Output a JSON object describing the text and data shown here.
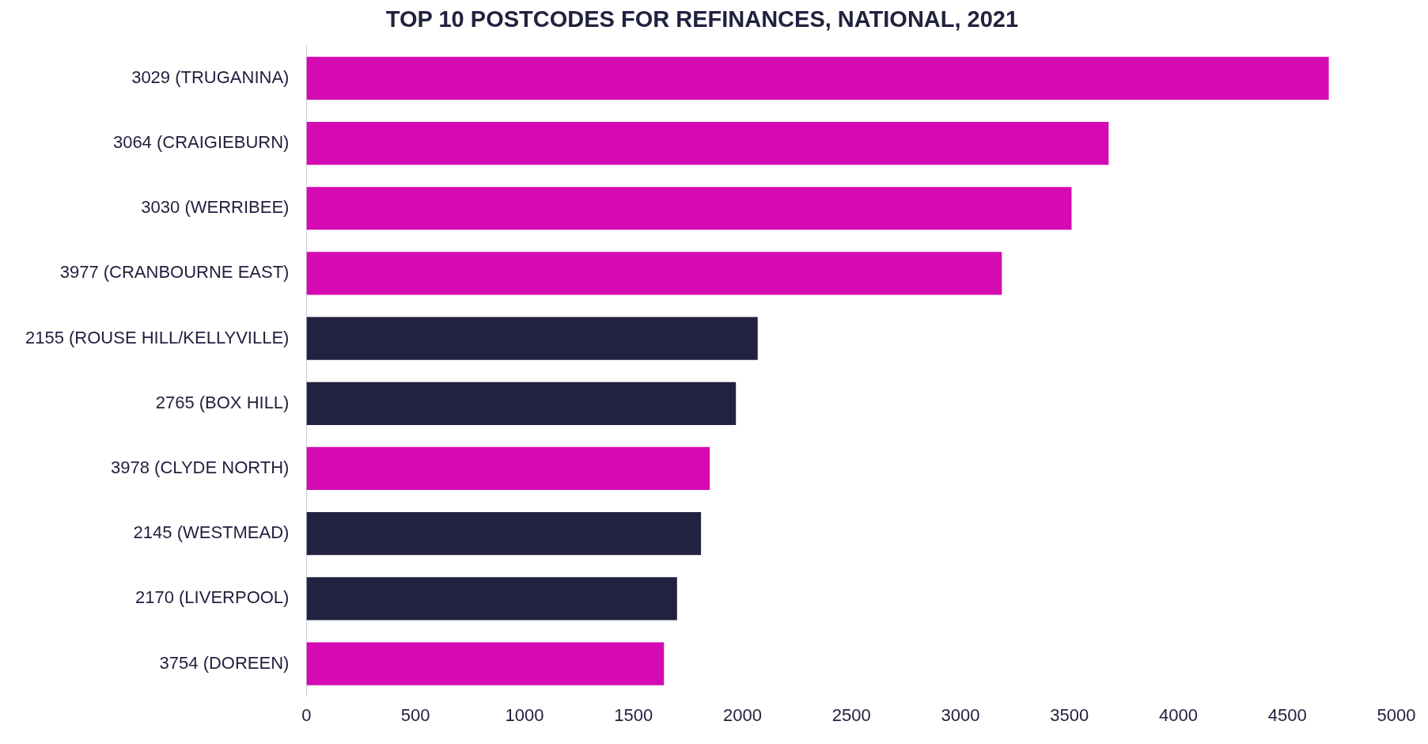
{
  "chart_data": {
    "type": "bar",
    "orientation": "horizontal",
    "title": "TOP 10 POSTCODES FOR REFINANCES, NATIONAL, 2021",
    "categories": [
      "3029 (TRUGANINA)",
      "3064 (CRAIGIEBURN)",
      "3030 (WERRIBEE)",
      "3977 (CRANBOURNE EAST)",
      "2155 (ROUSE HILL/KELLYVILLE)",
      "2765 (BOX HILL)",
      "3978 (CLYDE NORTH)",
      "2145 (WESTMEAD)",
      "2170 (LIVERPOOL)",
      "3754 (DOREEN)"
    ],
    "values": [
      4690,
      3680,
      3510,
      3190,
      2070,
      1970,
      1850,
      1810,
      1700,
      1640
    ],
    "colors": [
      "#d60ab3",
      "#d60ab3",
      "#d60ab3",
      "#d60ab3",
      "#212240",
      "#212240",
      "#d60ab3",
      "#212240",
      "#212240",
      "#d60ab3"
    ],
    "xlim": [
      0,
      5000
    ],
    "xticks": [
      0,
      500,
      1000,
      1500,
      2000,
      2500,
      3000,
      3500,
      4000,
      4500,
      5000
    ],
    "grid": false,
    "legend": false
  }
}
